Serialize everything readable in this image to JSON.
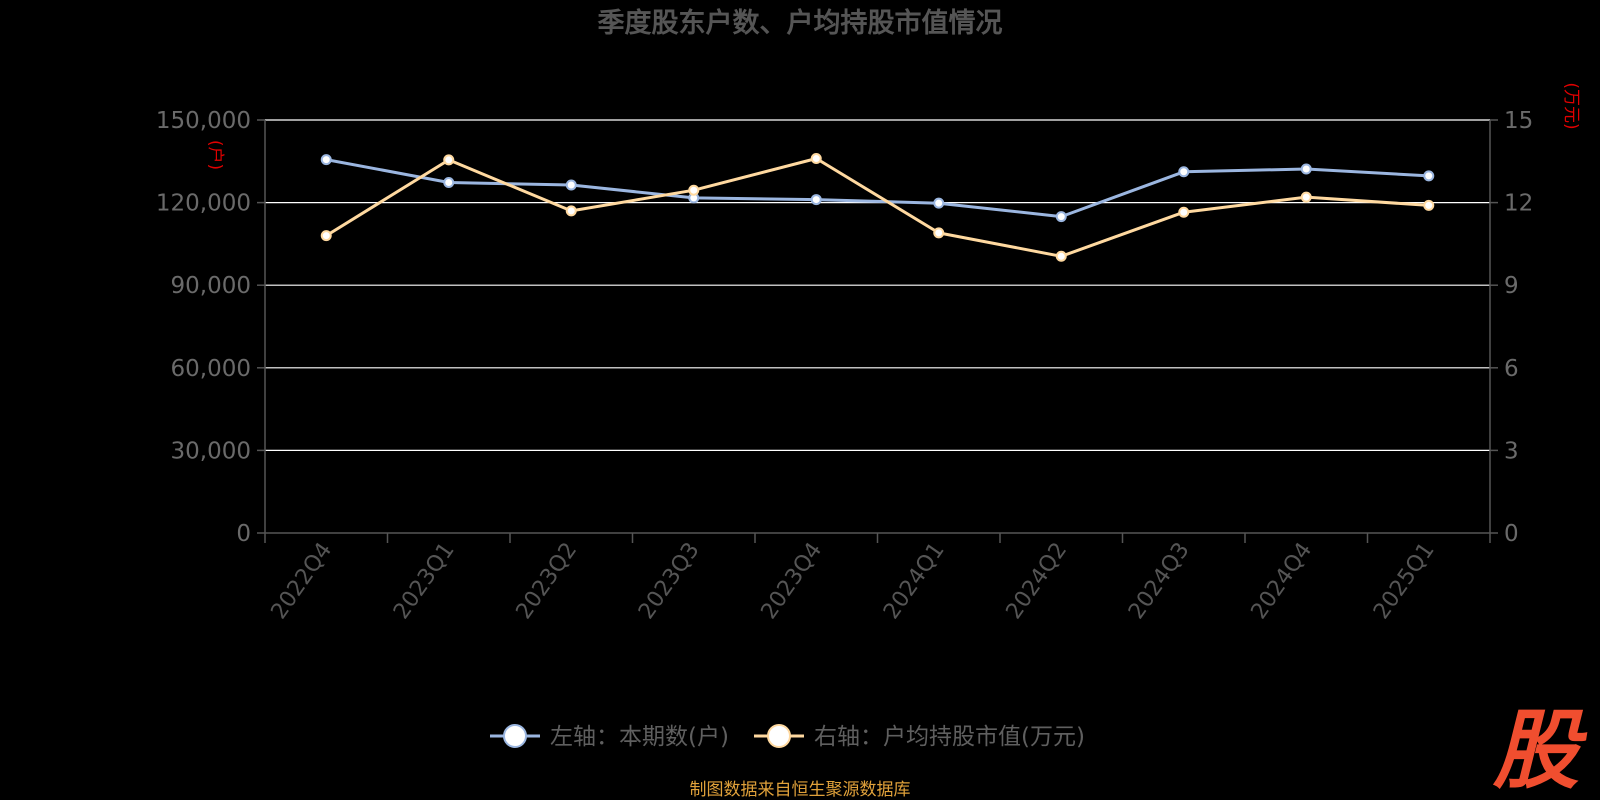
{
  "title": "季度股东户数、户均持股市值情况",
  "source_note": "制图数据来自恒生聚源数据库",
  "logo_text": "股",
  "colors": {
    "background": "#000000",
    "series_left": "#9bb6e0",
    "series_right": "#ffd9a0",
    "grid": "#ffffff",
    "axis": "#555555",
    "unit": "#e00000",
    "source": "#e0a13a",
    "logo": "#f04e2f"
  },
  "chart_data": {
    "type": "line",
    "title": "季度股东户数、户均持股市值情况",
    "categories": [
      "2022Q4",
      "2023Q1",
      "2023Q2",
      "2023Q3",
      "2023Q4",
      "2024Q1",
      "2024Q2",
      "2024Q3",
      "2024Q4",
      "2025Q1"
    ],
    "left_axis": {
      "unit_label": "(户)",
      "ylim": [
        0,
        150000
      ],
      "ticks": [
        0,
        30000,
        60000,
        90000,
        120000,
        150000
      ],
      "tick_labels": [
        "0",
        "30,000",
        "60,000",
        "90,000",
        "120,000",
        "150,000"
      ]
    },
    "right_axis": {
      "unit_label": "(万元)",
      "ylim": [
        0,
        15
      ],
      "ticks": [
        0,
        3,
        6,
        9,
        12,
        15
      ],
      "tick_labels": [
        "0",
        "3",
        "6",
        "9",
        "12",
        "15"
      ]
    },
    "series": [
      {
        "name": "左轴：本期数(户)",
        "axis": "left",
        "color": "#9bb6e0",
        "values": [
          135600,
          127300,
          126400,
          121700,
          121100,
          119800,
          114900,
          131200,
          132200,
          129700
        ]
      },
      {
        "name": "右轴：户均持股市值(万元)",
        "axis": "right",
        "color": "#ffd9a0",
        "values": [
          10.8,
          13.55,
          11.7,
          12.45,
          13.6,
          10.9,
          10.05,
          11.65,
          12.2,
          11.9
        ]
      }
    ],
    "grid": true,
    "legend_position": "bottom-center"
  }
}
